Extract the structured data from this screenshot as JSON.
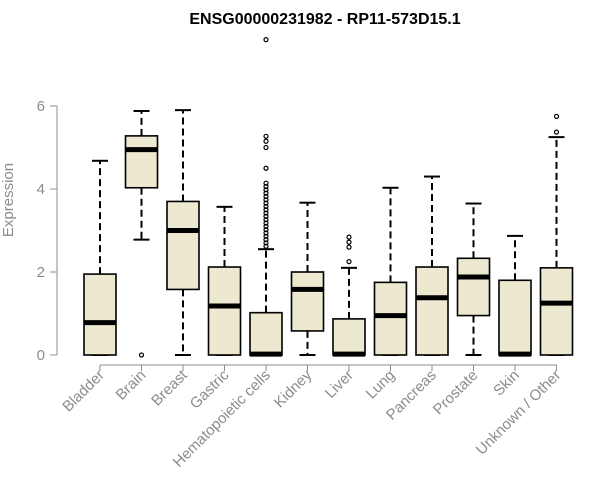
{
  "chart_data": {
    "type": "boxplot",
    "title": "ENSG00000231982 - RP11-573D15.1",
    "ylabel": "Expression",
    "xlabel": "",
    "ylim": [
      0,
      7.8
    ],
    "yticks": [
      0,
      2,
      4,
      6
    ],
    "colors": {
      "box_fill": "#ede8d0",
      "box_stroke": "#000000",
      "axis": "#8c8c8c"
    },
    "categories": [
      "Bladder",
      "Brain",
      "Breast",
      "Gastric",
      "Hematopoietic cells",
      "Kidney",
      "Liver",
      "Lung",
      "Pancreas",
      "Prostate",
      "Skin",
      "Unknown / Other"
    ],
    "boxes": [
      {
        "category": "Bladder",
        "whisker_low": 0,
        "q1": 0,
        "median": 0.78,
        "q3": 1.95,
        "whisker_high": 4.68,
        "outliers": []
      },
      {
        "category": "Brain",
        "whisker_low": 2.78,
        "q1": 4.03,
        "median": 4.95,
        "q3": 5.28,
        "whisker_high": 5.88,
        "outliers": [
          0.0
        ]
      },
      {
        "category": "Breast",
        "whisker_low": 0,
        "q1": 1.58,
        "median": 3.0,
        "q3": 3.7,
        "whisker_high": 5.9,
        "outliers": []
      },
      {
        "category": "Gastric",
        "whisker_low": 0,
        "q1": 0,
        "median": 1.18,
        "q3": 2.12,
        "whisker_high": 3.57,
        "outliers": []
      },
      {
        "category": "Hematopoietic cells",
        "whisker_low": 0,
        "q1": 0,
        "median": 0.02,
        "q3": 1.02,
        "whisker_high": 2.55,
        "outliers": [
          2.62,
          2.7,
          2.78,
          2.86,
          2.94,
          3.02,
          3.1,
          3.18,
          3.26,
          3.34,
          3.42,
          3.5,
          3.58,
          3.66,
          3.74,
          3.82,
          3.9,
          3.98,
          4.06,
          4.14,
          4.5,
          5.0,
          5.15,
          5.27,
          7.6
        ]
      },
      {
        "category": "Kidney",
        "whisker_low": 0,
        "q1": 0.58,
        "median": 1.58,
        "q3": 2.0,
        "whisker_high": 3.67,
        "outliers": []
      },
      {
        "category": "Liver",
        "whisker_low": 0,
        "q1": 0,
        "median": 0.02,
        "q3": 0.87,
        "whisker_high": 2.1,
        "outliers": [
          2.25,
          2.6,
          2.72,
          2.84
        ]
      },
      {
        "category": "Lung",
        "whisker_low": 0,
        "q1": 0,
        "median": 0.95,
        "q3": 1.75,
        "whisker_high": 4.03,
        "outliers": []
      },
      {
        "category": "Pancreas",
        "whisker_low": 0,
        "q1": 0,
        "median": 1.38,
        "q3": 2.12,
        "whisker_high": 4.3,
        "outliers": []
      },
      {
        "category": "Prostate",
        "whisker_low": 0,
        "q1": 0.95,
        "median": 1.88,
        "q3": 2.33,
        "whisker_high": 3.65,
        "outliers": []
      },
      {
        "category": "Skin",
        "whisker_low": 0,
        "q1": 0,
        "median": 0.02,
        "q3": 1.8,
        "whisker_high": 2.87,
        "outliers": []
      },
      {
        "category": "Unknown / Other",
        "whisker_low": 0,
        "q1": 0,
        "median": 1.25,
        "q3": 2.1,
        "whisker_high": 5.25,
        "outliers": [
          5.37,
          5.75
        ]
      }
    ]
  }
}
